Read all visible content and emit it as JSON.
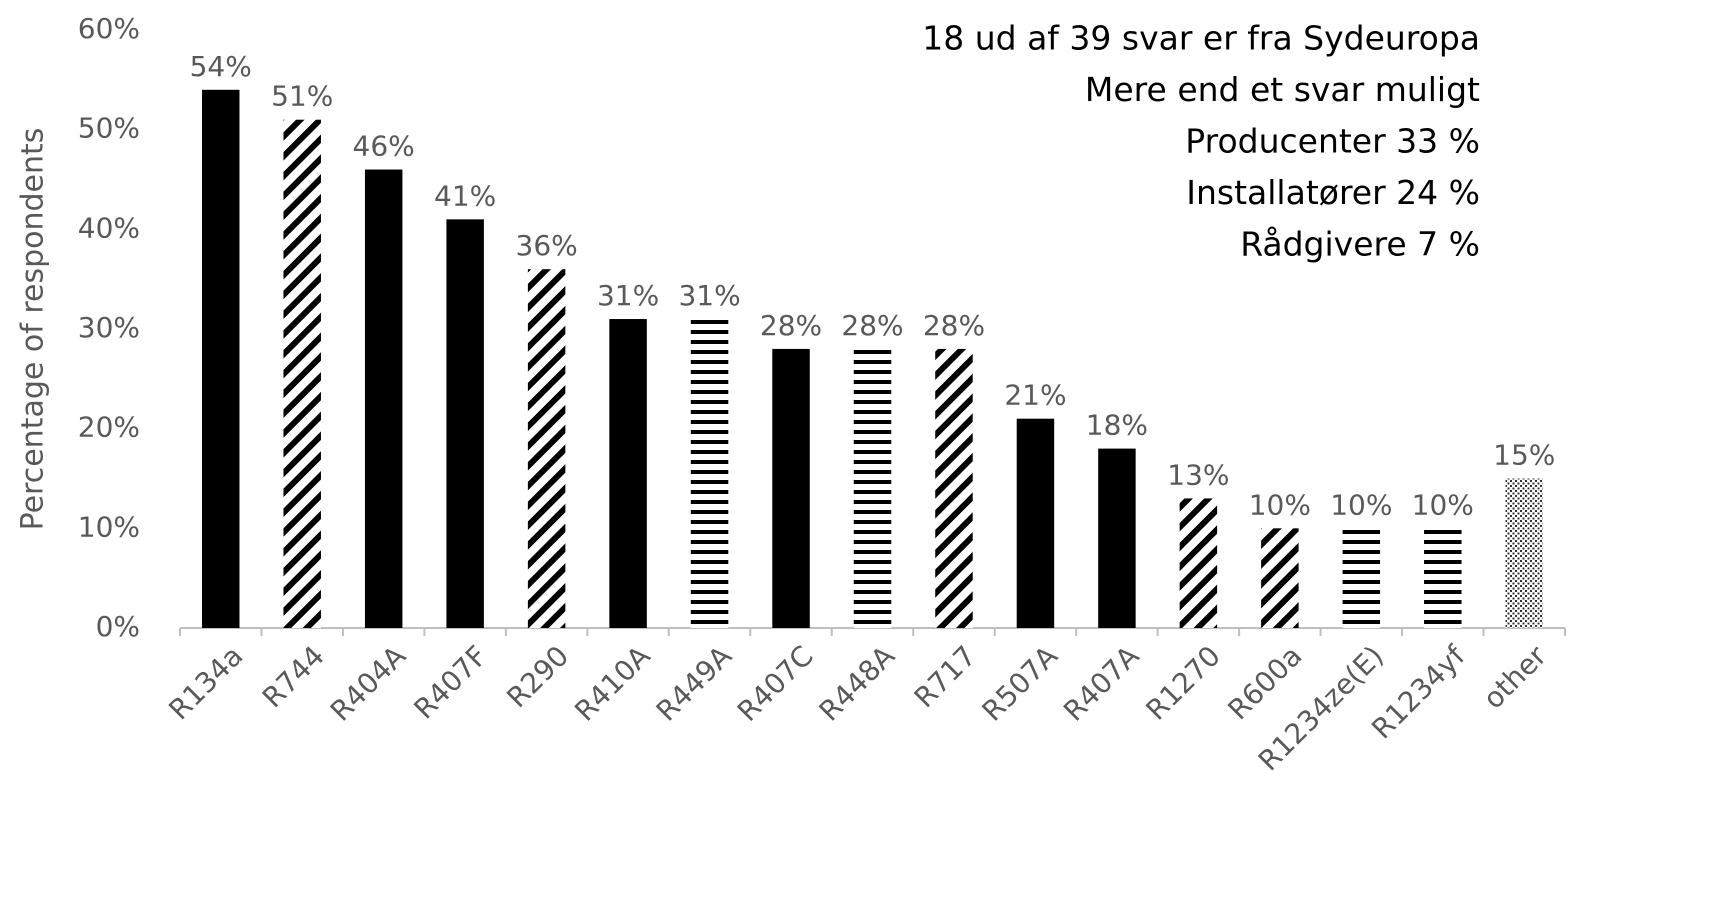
{
  "chart_data": {
    "type": "bar",
    "y_axis_label": "Percentage of respondents",
    "annotations": [
      "18 ud af 39 svar er fra Sydeuropa",
      "Mere end et svar muligt",
      "Producenter 33 %",
      "Installatører 24 %",
      "Rådgivere 7 %"
    ],
    "categories": [
      "R134a",
      "R744",
      "R404A",
      "R407F",
      "R290",
      "R410A",
      "R449A",
      "R407C",
      "R448A",
      "R717",
      "R507A",
      "R407A",
      "R1270",
      "R600a",
      "R1234ze(E)",
      "R1234yf",
      "other"
    ],
    "values": [
      54,
      51,
      46,
      41,
      36,
      31,
      31,
      28,
      28,
      28,
      21,
      18,
      13,
      10,
      10,
      10,
      15
    ],
    "value_labels": [
      "54%",
      "51%",
      "46%",
      "41%",
      "36%",
      "31%",
      "31%",
      "28%",
      "28%",
      "28%",
      "21%",
      "18%",
      "13%",
      "10%",
      "10%",
      "10%",
      "15%"
    ],
    "patterns": [
      "solid",
      "diagonal",
      "solid",
      "solid",
      "diagonal",
      "solid",
      "horizontal",
      "solid",
      "horizontal",
      "diagonal",
      "solid",
      "solid",
      "diagonal",
      "diagonal",
      "horizontal",
      "horizontal",
      "dotted"
    ],
    "color": "#000000",
    "ylim": [
      0,
      60
    ],
    "yticks": [
      {
        "value": 0,
        "label": "0%"
      },
      {
        "value": 10,
        "label": "10%"
      },
      {
        "value": 20,
        "label": "20%"
      },
      {
        "value": 30,
        "label": "30%"
      },
      {
        "value": 40,
        "label": "40%"
      },
      {
        "value": 50,
        "label": "50%"
      },
      {
        "value": 60,
        "label": "60%"
      }
    ],
    "grid": false
  }
}
